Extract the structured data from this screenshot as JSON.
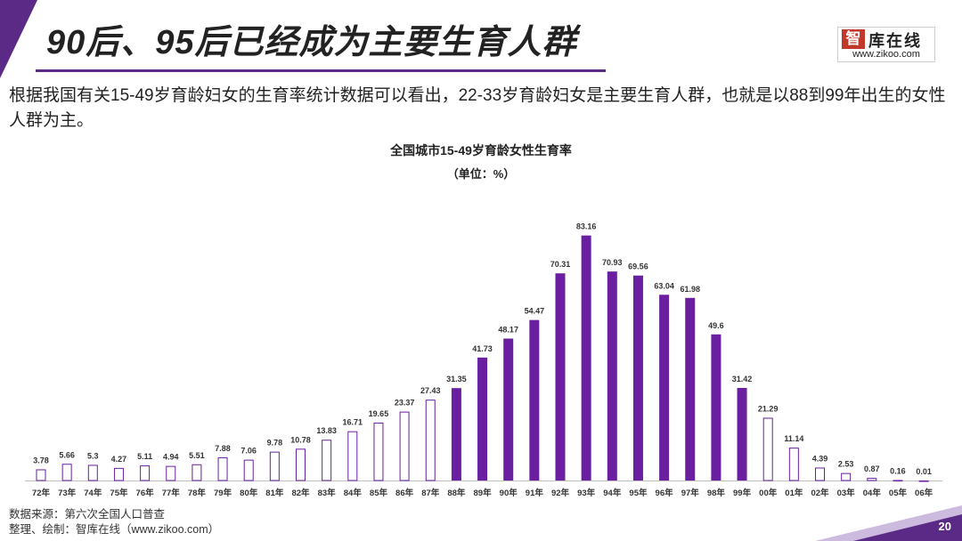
{
  "header": {
    "title": "90后、95后已经成为主要生育人群",
    "logo": {
      "mark": "智",
      "name": "库在线",
      "url": "www.zikoo.com"
    }
  },
  "intro": "根据我国有关15-49岁育龄妇女的生育率统计数据可以看出，22-33岁育龄妇女是主要生育人群，也就是以88到99年出生的女性人群为主。",
  "chart_data": {
    "type": "bar",
    "title": "全国城市15-49岁育龄女性生育率",
    "subtitle": "（单位：%）",
    "xlabel": "",
    "ylabel": "",
    "ylim": [
      0,
      90
    ],
    "categories": [
      "72年",
      "73年",
      "74年",
      "75年",
      "76年",
      "77年",
      "78年",
      "79年",
      "80年",
      "81年",
      "82年",
      "83年",
      "84年",
      "85年",
      "86年",
      "87年",
      "88年",
      "89年",
      "90年",
      "91年",
      "92年",
      "93年",
      "94年",
      "95年",
      "96年",
      "97年",
      "98年",
      "99年",
      "00年",
      "01年",
      "02年",
      "03年",
      "04年",
      "05年",
      "06年"
    ],
    "values": [
      3.78,
      5.66,
      5.3,
      4.27,
      5.11,
      4.94,
      5.51,
      7.88,
      7.06,
      9.78,
      10.78,
      13.83,
      16.71,
      19.65,
      23.37,
      27.43,
      31.35,
      41.73,
      48.17,
      54.47,
      70.31,
      83.16,
      70.93,
      69.56,
      63.04,
      61.98,
      49.6,
      31.42,
      21.29,
      11.14,
      4.39,
      2.53,
      0.87,
      0.16,
      0.01
    ],
    "highlight": [
      false,
      false,
      false,
      false,
      false,
      false,
      false,
      false,
      false,
      false,
      false,
      false,
      false,
      false,
      false,
      false,
      true,
      true,
      true,
      true,
      true,
      true,
      true,
      true,
      true,
      true,
      true,
      true,
      false,
      false,
      false,
      false,
      false,
      false,
      false
    ],
    "colors": {
      "highlight": "#6a1fa0",
      "outline": "#6a1fa0",
      "axis": "#bfbfbf"
    }
  },
  "footer": {
    "source_line1": "数据来源：第六次全国人口普查",
    "source_line2": "整理、绘制：智库在线（www.zikoo.com）",
    "page_number": "20"
  }
}
